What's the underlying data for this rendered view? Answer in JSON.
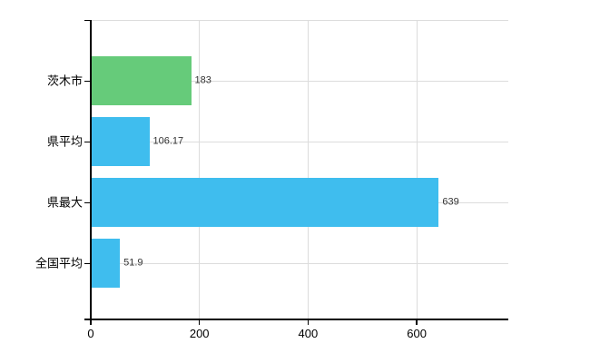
{
  "chart_data": {
    "type": "bar",
    "orientation": "horizontal",
    "categories": [
      "茨木市",
      "県平均",
      "県最大",
      "全国平均"
    ],
    "values": [
      183,
      106.17,
      639,
      51.9
    ],
    "value_labels": [
      "183",
      "106.17",
      "639",
      "51.9"
    ],
    "bar_colors": [
      "#66cb7a",
      "#3fbdee",
      "#3fbdee",
      "#3fbdee"
    ],
    "x_ticks": [
      0,
      200,
      400,
      600
    ],
    "x_tick_labels": [
      "0",
      "200",
      "400",
      "600"
    ],
    "xlim": [
      0,
      768
    ],
    "grid": true,
    "legend": "none",
    "colors": {
      "green_bar": "#66cb7a",
      "blue_bar": "#3fbdee",
      "gridline": "#dcdcdc",
      "axis": "#000000",
      "category_label": "#000000",
      "x_tick_label": "#000000",
      "value_label": "#333333",
      "background": "#ffffff"
    }
  }
}
